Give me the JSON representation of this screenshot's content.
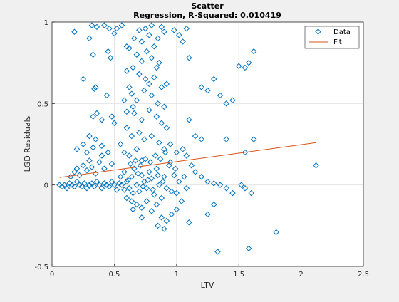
{
  "chart_data": {
    "type": "scatter",
    "title": "Scatter",
    "subtitle": "Regression, R-Squared: 0.010419",
    "xlabel": "LTV",
    "ylabel": "LGD Residuals",
    "xlim": [
      0,
      2.5
    ],
    "ylim": [
      -0.5,
      1
    ],
    "xticks": [
      0,
      0.5,
      1,
      1.5,
      2,
      2.5
    ],
    "xtick_labels": [
      "0",
      "0.5",
      "1",
      "1.5",
      "2",
      "2.5"
    ],
    "yticks": [
      -0.5,
      0,
      0.5,
      1
    ],
    "ytick_labels": [
      "-0.5",
      "0",
      "0.5",
      "1"
    ],
    "grid": true,
    "legend_position": "top-right",
    "series": [
      {
        "name": "Data",
        "marker": "diamond",
        "color": "#0072BD",
        "points": [
          [
            0.06,
            0.0
          ],
          [
            0.08,
            -0.01
          ],
          [
            0.1,
            0.0
          ],
          [
            0.12,
            -0.02
          ],
          [
            0.14,
            0.01
          ],
          [
            0.16,
            0.0
          ],
          [
            0.18,
            -0.01
          ],
          [
            0.2,
            0.02
          ],
          [
            0.22,
            0.0
          ],
          [
            0.24,
            -0.01
          ],
          [
            0.26,
            0.01
          ],
          [
            0.28,
            -0.02
          ],
          [
            0.3,
            0.0
          ],
          [
            0.32,
            0.01
          ],
          [
            0.34,
            -0.01
          ],
          [
            0.36,
            0.02
          ],
          [
            0.38,
            0.0
          ],
          [
            0.4,
            -0.02
          ],
          [
            0.42,
            0.01
          ],
          [
            0.44,
            0.0
          ],
          [
            0.46,
            -0.01
          ],
          [
            0.48,
            0.02
          ],
          [
            0.5,
            0.0
          ],
          [
            0.52,
            -0.03
          ],
          [
            0.54,
            0.01
          ],
          [
            0.15,
            0.05
          ],
          [
            0.18,
            0.08
          ],
          [
            0.2,
            0.1
          ],
          [
            0.22,
            0.06
          ],
          [
            0.25,
            0.12
          ],
          [
            0.28,
            0.09
          ],
          [
            0.3,
            0.15
          ],
          [
            0.32,
            0.11
          ],
          [
            0.35,
            0.07
          ],
          [
            0.38,
            0.14
          ],
          [
            0.4,
            0.18
          ],
          [
            0.42,
            0.1
          ],
          [
            0.45,
            0.2
          ],
          [
            0.48,
            0.13
          ],
          [
            0.2,
            0.22
          ],
          [
            0.25,
            0.25
          ],
          [
            0.3,
            0.3
          ],
          [
            0.35,
            0.28
          ],
          [
            0.4,
            0.24
          ],
          [
            0.28,
            0.2
          ],
          [
            0.33,
            0.23
          ],
          [
            0.18,
            0.94
          ],
          [
            0.32,
            0.98
          ],
          [
            0.36,
            0.97
          ],
          [
            0.42,
            0.98
          ],
          [
            0.46,
            0.96
          ],
          [
            0.52,
            0.96
          ],
          [
            0.5,
            0.93
          ],
          [
            0.56,
            0.98
          ],
          [
            0.3,
            0.9
          ],
          [
            0.33,
            0.8
          ],
          [
            0.45,
            0.82
          ],
          [
            0.47,
            0.78
          ],
          [
            0.25,
            0.65
          ],
          [
            0.35,
            0.6
          ],
          [
            0.34,
            0.59
          ],
          [
            0.44,
            0.55
          ],
          [
            0.33,
            0.42
          ],
          [
            0.36,
            0.44
          ],
          [
            0.4,
            0.4
          ],
          [
            0.48,
            0.42
          ],
          [
            0.5,
            0.38
          ],
          [
            0.6,
            0.45
          ],
          [
            0.58,
            0.52
          ],
          [
            0.62,
            0.6
          ],
          [
            0.65,
            0.48
          ],
          [
            0.66,
            0.9
          ],
          [
            0.7,
            0.95
          ],
          [
            0.72,
            0.88
          ],
          [
            0.75,
            0.96
          ],
          [
            0.78,
            0.92
          ],
          [
            0.8,
            0.98
          ],
          [
            0.82,
            0.85
          ],
          [
            0.85,
            0.9
          ],
          [
            0.88,
            0.97
          ],
          [
            0.9,
            0.94
          ],
          [
            0.6,
            0.85
          ],
          [
            0.62,
            0.84
          ],
          [
            0.68,
            0.8
          ],
          [
            0.72,
            0.76
          ],
          [
            0.76,
            0.82
          ],
          [
            0.8,
            0.78
          ],
          [
            0.84,
            0.72
          ],
          [
            0.86,
            0.75
          ],
          [
            0.6,
            0.7
          ],
          [
            0.65,
            0.72
          ],
          [
            0.7,
            0.68
          ],
          [
            0.75,
            0.65
          ],
          [
            0.78,
            0.62
          ],
          [
            0.82,
            0.66
          ],
          [
            0.88,
            0.6
          ],
          [
            0.92,
            0.62
          ],
          [
            0.64,
            0.56
          ],
          [
            0.68,
            0.52
          ],
          [
            0.74,
            0.58
          ],
          [
            0.8,
            0.55
          ],
          [
            0.85,
            0.5
          ],
          [
            0.9,
            0.48
          ],
          [
            0.66,
            0.44
          ],
          [
            0.72,
            0.4
          ],
          [
            0.78,
            0.46
          ],
          [
            0.84,
            0.42
          ],
          [
            0.88,
            0.38
          ],
          [
            0.92,
            0.35
          ],
          [
            0.6,
            0.35
          ],
          [
            0.64,
            0.3
          ],
          [
            0.7,
            0.32
          ],
          [
            0.74,
            0.28
          ],
          [
            0.8,
            0.3
          ],
          [
            0.86,
            0.26
          ],
          [
            0.9,
            0.22
          ],
          [
            0.95,
            0.25
          ],
          [
            1.0,
            0.2
          ],
          [
            0.55,
            0.25
          ],
          [
            0.58,
            0.2
          ],
          [
            0.62,
            0.18
          ],
          [
            0.68,
            0.22
          ],
          [
            0.72,
            0.15
          ],
          [
            0.98,
            0.95
          ],
          [
            1.02,
            0.92
          ],
          [
            1.08,
            0.96
          ],
          [
            1.05,
            0.88
          ],
          [
            1.1,
            0.78
          ],
          [
            1.2,
            0.6
          ],
          [
            1.25,
            0.58
          ],
          [
            1.3,
            0.65
          ],
          [
            1.35,
            0.55
          ],
          [
            1.4,
            0.5
          ],
          [
            1.45,
            0.52
          ],
          [
            1.5,
            0.73
          ],
          [
            1.55,
            0.72
          ],
          [
            1.58,
            0.75
          ],
          [
            1.62,
            0.82
          ],
          [
            1.1,
            0.4
          ],
          [
            1.15,
            0.3
          ],
          [
            1.2,
            0.28
          ],
          [
            1.4,
            0.28
          ],
          [
            1.55,
            0.2
          ],
          [
            1.62,
            0.28
          ],
          [
            1.05,
            0.22
          ],
          [
            1.08,
            0.18
          ],
          [
            1.12,
            0.12
          ],
          [
            1.15,
            0.08
          ],
          [
            1.2,
            0.05
          ],
          [
            1.25,
            0.02
          ],
          [
            1.3,
            0.01
          ],
          [
            1.35,
            0.0
          ],
          [
            1.4,
            -0.02
          ],
          [
            1.45,
            -0.05
          ],
          [
            1.52,
            0.0
          ],
          [
            1.55,
            -0.02
          ],
          [
            1.6,
            -0.05
          ],
          [
            0.55,
            0.05
          ],
          [
            0.58,
            0.08
          ],
          [
            0.6,
            0.02
          ],
          [
            0.62,
            -0.02
          ],
          [
            0.64,
            0.05
          ],
          [
            0.66,
            0.1
          ],
          [
            0.68,
            0.0
          ],
          [
            0.7,
            -0.04
          ],
          [
            0.72,
            0.06
          ],
          [
            0.74,
            0.02
          ],
          [
            0.76,
            -0.02
          ],
          [
            0.78,
            0.08
          ],
          [
            0.8,
            0.04
          ],
          [
            0.82,
            -0.06
          ],
          [
            0.84,
            0.1
          ],
          [
            0.86,
            0.0
          ],
          [
            0.88,
            -0.08
          ],
          [
            0.9,
            0.05
          ],
          [
            0.92,
            -0.02
          ],
          [
            0.94,
            0.12
          ],
          [
            0.96,
            -0.04
          ],
          [
            0.98,
            0.06
          ],
          [
            1.0,
            -0.05
          ],
          [
            1.02,
            0.02
          ],
          [
            1.04,
            -0.1
          ],
          [
            1.06,
            0.05
          ],
          [
            1.08,
            -0.02
          ],
          [
            0.6,
            -0.08
          ],
          [
            0.64,
            -0.1
          ],
          [
            0.68,
            -0.12
          ],
          [
            0.72,
            -0.14
          ],
          [
            0.76,
            -0.1
          ],
          [
            0.8,
            -0.16
          ],
          [
            0.84,
            -0.12
          ],
          [
            0.88,
            -0.2
          ],
          [
            0.92,
            -0.22
          ],
          [
            0.96,
            -0.18
          ],
          [
            1.0,
            -0.15
          ],
          [
            0.85,
            -0.25
          ],
          [
            0.9,
            -0.27
          ],
          [
            0.72,
            -0.2
          ],
          [
            0.65,
            -0.15
          ],
          [
            1.3,
            -0.12
          ],
          [
            1.25,
            -0.18
          ],
          [
            1.8,
            -0.29
          ],
          [
            1.58,
            -0.39
          ],
          [
            1.33,
            -0.41
          ],
          [
            1.1,
            -0.23
          ],
          [
            2.12,
            0.12
          ],
          [
            0.56,
            0.0
          ],
          [
            0.58,
            -0.03
          ],
          [
            0.63,
            0.13
          ],
          [
            0.67,
            0.15
          ],
          [
            0.71,
            0.12
          ],
          [
            0.75,
            0.16
          ],
          [
            0.79,
            0.14
          ],
          [
            0.83,
            0.18
          ],
          [
            0.87,
            0.16
          ],
          [
            0.91,
            0.2
          ],
          [
            0.95,
            0.14
          ],
          [
            0.99,
            0.1
          ],
          [
            0.61,
            0.03
          ],
          [
            0.65,
            -0.05
          ],
          [
            0.69,
            0.07
          ],
          [
            0.73,
            -0.01
          ],
          [
            0.77,
            0.03
          ],
          [
            0.81,
            -0.03
          ],
          [
            0.85,
            0.06
          ],
          [
            0.89,
            0.02
          ]
        ]
      },
      {
        "name": "Fit",
        "type": "line",
        "color": "#D95319",
        "x": [
          0.06,
          2.12
        ],
        "y": [
          0.046,
          0.26
        ]
      }
    ]
  }
}
